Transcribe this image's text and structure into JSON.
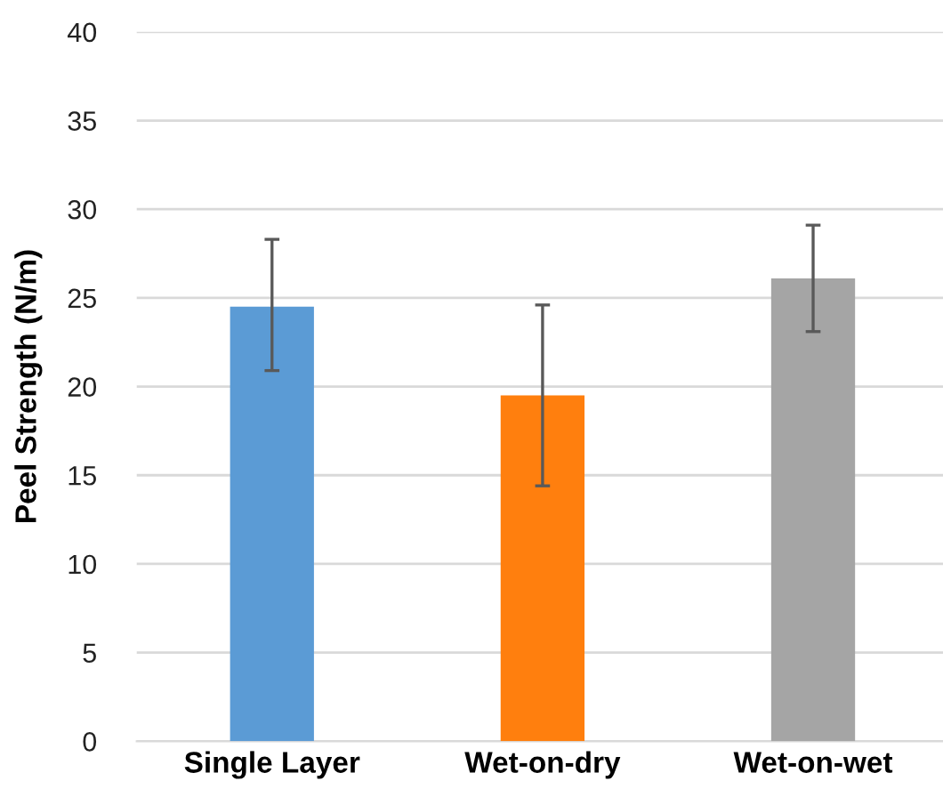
{
  "chart_data": {
    "type": "bar",
    "ylabel": "Peel Strength (N/m)",
    "categories": [
      "Single Layer",
      "Wet-on-dry",
      "Wet-on-wet"
    ],
    "values": [
      24.5,
      19.5,
      26.1
    ],
    "colors": [
      "#5b9bd5",
      "#ff7f0e",
      "#a5a5a5"
    ],
    "errors": [
      [
        20.9,
        28.3
      ],
      [
        14.4,
        24.6
      ],
      [
        23.1,
        29.1
      ]
    ],
    "ylim": [
      0,
      40
    ],
    "yticks": [
      0,
      5,
      10,
      15,
      20,
      25,
      30,
      35,
      40
    ],
    "grid": "y"
  }
}
